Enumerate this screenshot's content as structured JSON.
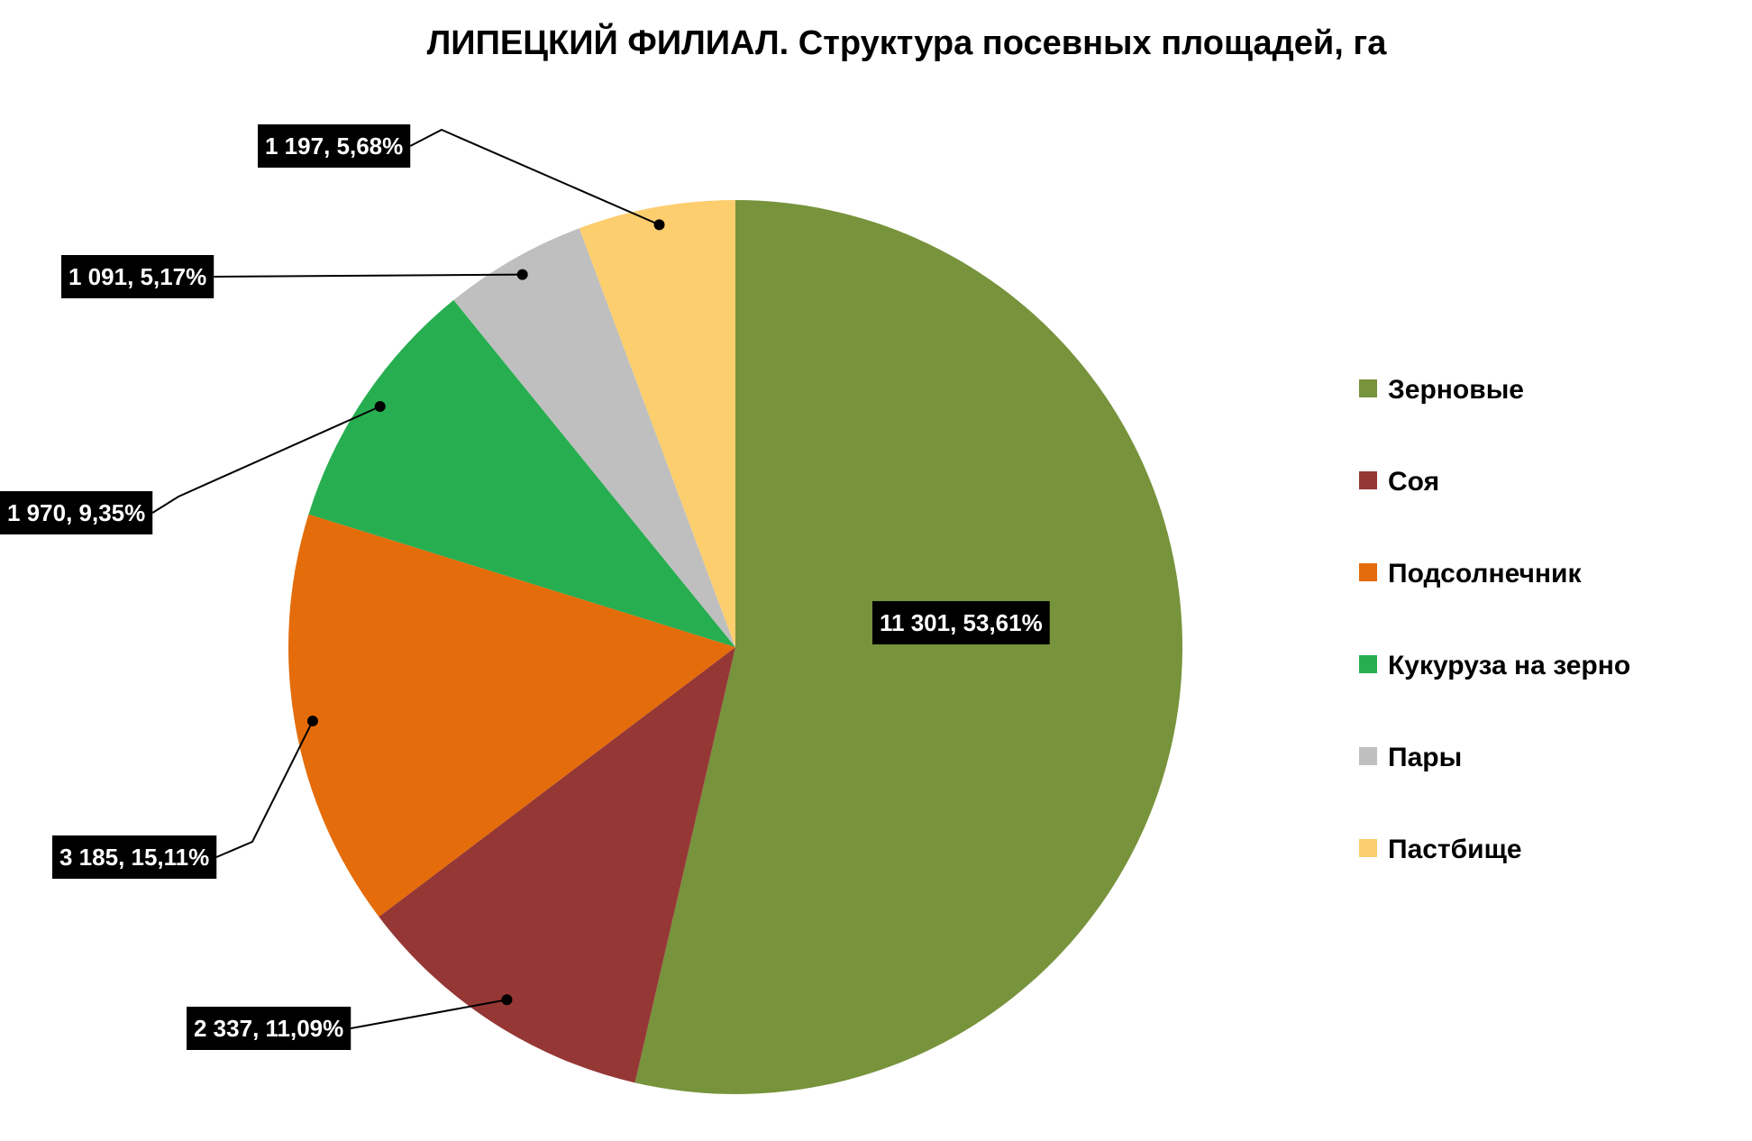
{
  "chart_data": {
    "type": "pie",
    "title": "ЛИПЕЦКИЙ ФИЛИАЛ. Структура посевных площадей, га",
    "legend_position": "right",
    "slices": [
      {
        "name": "Зерновые",
        "value": 11301,
        "percent": 53.61,
        "label": "11 301,  53,61%",
        "color": "#77933c"
      },
      {
        "name": "Соя",
        "value": 2337,
        "percent": 11.09,
        "label": "2 337,  11,09%",
        "color": "#953735"
      },
      {
        "name": "Подсолнечник",
        "value": 3185,
        "percent": 15.11,
        "label": "3 185,  15,11%",
        "color": "#e46c0a"
      },
      {
        "name": "Кукуруза на зерно",
        "value": 1970,
        "percent": 9.35,
        "label": "1 970,  9,35%",
        "color": "#27ae50"
      },
      {
        "name": "Пары",
        "value": 1091,
        "percent": 5.17,
        "label": "1 091,  5,17%",
        "color": "#bfbfbf"
      },
      {
        "name": "Пастбище",
        "value": 1197,
        "percent": 5.68,
        "label": "1 197,  5,68%",
        "color": "#fcce6e"
      }
    ]
  }
}
